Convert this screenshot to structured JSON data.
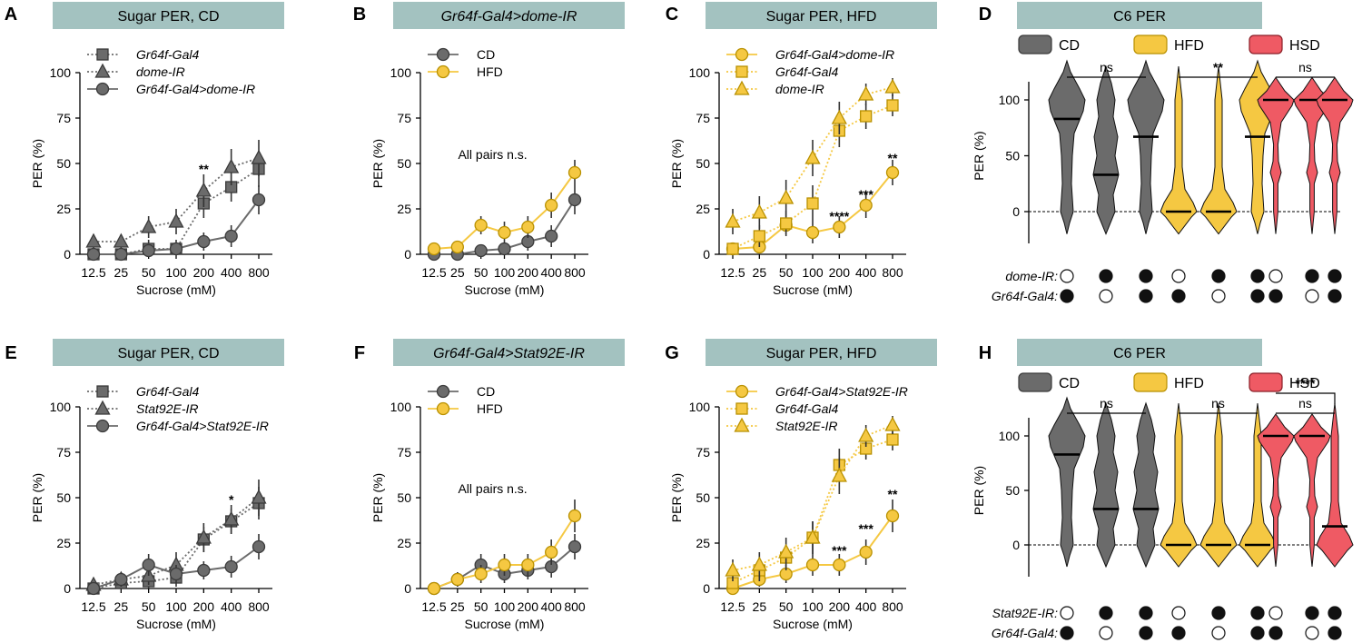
{
  "colors": {
    "banner": "#a3c2c0",
    "gray": "#6b6b6b",
    "gray_dark": "#3a3a3a",
    "yellow": "#f5c842",
    "yellow_dark": "#b89000",
    "red": "#ef5a64",
    "red_dark": "#8a1f27"
  },
  "chart_data": [
    {
      "panel": "A",
      "type": "line",
      "title": "Sugar PER, CD",
      "title_italic": false,
      "ylabel": "PER (%)",
      "xlabel": "Sucrose (mM)",
      "categories": [
        "12.5",
        "25",
        "50",
        "100",
        "200",
        "400",
        "800"
      ],
      "yticks": [
        "0",
        "25",
        "50",
        "75",
        "100"
      ],
      "ylim": [
        0,
        100
      ],
      "series": [
        {
          "name": "Gr64f-Gal4",
          "marker": "square",
          "style": "dotted",
          "color": "gray",
          "values": [
            0,
            0,
            3,
            3,
            28,
            37,
            47
          ],
          "err": [
            3,
            3,
            5,
            5,
            8,
            8,
            10
          ]
        },
        {
          "name": "dome-IR",
          "marker": "triangle",
          "style": "dotted",
          "color": "gray",
          "values": [
            7,
            7,
            15,
            18,
            35,
            48,
            53
          ],
          "err": [
            4,
            4,
            6,
            7,
            9,
            10,
            10
          ]
        },
        {
          "name": "Gr64f-Gal4>dome-IR",
          "marker": "circle",
          "style": "solid",
          "color": "gray",
          "values": [
            0,
            0,
            2,
            3,
            7,
            10,
            30
          ],
          "err": [
            2,
            2,
            3,
            3,
            5,
            6,
            8
          ]
        }
      ],
      "annotations": [
        {
          "cat": 4,
          "y": 47,
          "text": "**"
        }
      ]
    },
    {
      "panel": "B",
      "type": "line",
      "title": "Gr64f-Gal4>dome-IR",
      "title_italic": true,
      "ylabel": "PER (%)",
      "xlabel": "Sucrose (mM)",
      "categories": [
        "12.5",
        "25",
        "50",
        "100",
        "200",
        "400",
        "800"
      ],
      "yticks": [
        "0",
        "25",
        "50",
        "75",
        "100"
      ],
      "ylim": [
        0,
        100
      ],
      "series": [
        {
          "name": "CD",
          "marker": "circle",
          "style": "solid",
          "color": "gray",
          "values": [
            0,
            0,
            2,
            3,
            7,
            10,
            30
          ],
          "err": [
            2,
            2,
            3,
            3,
            5,
            6,
            8
          ]
        },
        {
          "name": "HFD",
          "marker": "circle",
          "style": "solid",
          "color": "yellow",
          "values": [
            3,
            4,
            16,
            12,
            15,
            27,
            45
          ],
          "err": [
            3,
            3,
            5,
            6,
            6,
            7,
            7
          ]
        }
      ],
      "annotations": [
        {
          "cat": 2.5,
          "y": 55,
          "text": "All pairs n.s."
        }
      ]
    },
    {
      "panel": "C",
      "type": "line",
      "title": "Sugar PER, HFD",
      "title_italic": false,
      "ylabel": "PER (%)",
      "xlabel": "Sucrose (mM)",
      "categories": [
        "12.5",
        "25",
        "50",
        "100",
        "200",
        "400",
        "800"
      ],
      "yticks": [
        "0",
        "25",
        "50",
        "75",
        "100"
      ],
      "ylim": [
        0,
        100
      ],
      "series": [
        {
          "name": "Gr64f-Gal4>dome-IR",
          "marker": "circle",
          "style": "solid",
          "color": "yellow",
          "values": [
            3,
            4,
            16,
            12,
            15,
            27,
            45
          ],
          "err": [
            3,
            3,
            5,
            6,
            6,
            7,
            7
          ]
        },
        {
          "name": "Gr64f-Gal4",
          "marker": "square",
          "style": "dotted",
          "color": "yellow",
          "values": [
            3,
            10,
            17,
            28,
            68,
            76,
            82
          ],
          "err": [
            3,
            6,
            7,
            10,
            9,
            7,
            6
          ]
        },
        {
          "name": "dome-IR",
          "marker": "triangle",
          "style": "dotted",
          "color": "yellow",
          "values": [
            18,
            23,
            31,
            53,
            75,
            88,
            92
          ],
          "err": [
            7,
            9,
            10,
            10,
            9,
            6,
            5
          ]
        }
      ],
      "annotations": [
        {
          "cat": 4,
          "y": 21,
          "text": "****"
        },
        {
          "cat": 5,
          "y": 33,
          "text": "***"
        },
        {
          "cat": 6,
          "y": 53,
          "text": "**"
        }
      ]
    },
    {
      "panel": "D",
      "type": "violin",
      "title": "C6 PER",
      "title_italic": false,
      "ylabel": "PER (%)",
      "yticks": [
        "0",
        "50",
        "100"
      ],
      "ylim": [
        0,
        100
      ],
      "legend": [
        {
          "name": "CD",
          "color": "gray"
        },
        {
          "name": "HFD",
          "color": "yellow"
        },
        {
          "name": "HSD",
          "color": "red"
        }
      ],
      "groups": [
        {
          "color": "gray",
          "medians": [
            83,
            33,
            67
          ],
          "sig": "ns"
        },
        {
          "color": "yellow",
          "medians": [
            0,
            0,
            67
          ],
          "sig": "**"
        },
        {
          "color": "red",
          "medians": [
            100,
            100,
            100
          ],
          "sig": "ns"
        }
      ],
      "genotype_rows": [
        {
          "label": "dome-IR:",
          "pattern": [
            0,
            1,
            1
          ]
        },
        {
          "label": "Gr64f-Gal4:",
          "pattern": [
            1,
            0,
            1
          ]
        }
      ]
    },
    {
      "panel": "E",
      "type": "line",
      "title": "Sugar PER, CD",
      "title_italic": false,
      "ylabel": "PER (%)",
      "xlabel": "Sucrose (mM)",
      "categories": [
        "12.5",
        "25",
        "50",
        "100",
        "200",
        "400",
        "800"
      ],
      "yticks": [
        "0",
        "25",
        "50",
        "75",
        "100"
      ],
      "ylim": [
        0,
        100
      ],
      "series": [
        {
          "name": "Gr64f-Gal4",
          "marker": "square",
          "style": "dotted",
          "color": "gray",
          "values": [
            0,
            3,
            4,
            6,
            27,
            37,
            47
          ],
          "err": [
            3,
            3,
            4,
            5,
            7,
            7,
            9
          ]
        },
        {
          "name": "Stat92E-IR",
          "marker": "triangle",
          "style": "dotted",
          "color": "gray",
          "values": [
            2,
            5,
            7,
            13,
            28,
            38,
            50
          ],
          "err": [
            3,
            4,
            5,
            7,
            8,
            8,
            10
          ]
        },
        {
          "name": "Gr64f-Gal4>Stat92E-IR",
          "marker": "circle",
          "style": "solid",
          "color": "gray",
          "values": [
            0,
            5,
            13,
            8,
            10,
            12,
            23
          ],
          "err": [
            2,
            4,
            6,
            5,
            5,
            6,
            7
          ]
        }
      ],
      "annotations": [
        {
          "cat": 5,
          "y": 49,
          "text": "*"
        }
      ]
    },
    {
      "panel": "F",
      "type": "line",
      "title": "Gr64f-Gal4>Stat92E-IR",
      "title_italic": true,
      "ylabel": "PER (%)",
      "xlabel": "Sucrose (mM)",
      "categories": [
        "12.5",
        "25",
        "50",
        "100",
        "200",
        "400",
        "800"
      ],
      "yticks": [
        "0",
        "25",
        "50",
        "75",
        "100"
      ],
      "ylim": [
        0,
        100
      ],
      "series": [
        {
          "name": "CD",
          "marker": "circle",
          "style": "solid",
          "color": "gray",
          "values": [
            0,
            5,
            13,
            8,
            10,
            12,
            23
          ],
          "err": [
            2,
            4,
            6,
            5,
            5,
            6,
            7
          ]
        },
        {
          "name": "HFD",
          "marker": "circle",
          "style": "solid",
          "color": "yellow",
          "values": [
            0,
            5,
            8,
            13,
            13,
            20,
            40
          ],
          "err": [
            2,
            4,
            5,
            6,
            6,
            7,
            9
          ]
        }
      ],
      "annotations": [
        {
          "cat": 2.5,
          "y": 55,
          "text": "All pairs n.s."
        }
      ]
    },
    {
      "panel": "G",
      "type": "line",
      "title": "Sugar PER, HFD",
      "title_italic": false,
      "ylabel": "PER (%)",
      "xlabel": "Sucrose (mM)",
      "categories": [
        "12.5",
        "25",
        "50",
        "100",
        "200",
        "400",
        "800"
      ],
      "yticks": [
        "0",
        "25",
        "50",
        "75",
        "100"
      ],
      "ylim": [
        0,
        100
      ],
      "series": [
        {
          "name": "Gr64f-Gal4>Stat92E-IR",
          "marker": "circle",
          "style": "solid",
          "color": "yellow",
          "values": [
            0,
            5,
            8,
            13,
            13,
            20,
            40
          ],
          "err": [
            2,
            4,
            5,
            6,
            6,
            7,
            9
          ]
        },
        {
          "name": "Gr64f-Gal4",
          "marker": "square",
          "style": "dotted",
          "color": "yellow",
          "values": [
            3,
            10,
            17,
            28,
            68,
            77,
            82
          ],
          "err": [
            4,
            6,
            7,
            9,
            9,
            6,
            6
          ]
        },
        {
          "name": "Stat92E-IR",
          "marker": "triangle",
          "style": "dotted",
          "color": "yellow",
          "values": [
            10,
            13,
            20,
            28,
            62,
            84,
            90
          ],
          "err": [
            6,
            7,
            8,
            9,
            10,
            6,
            5
          ]
        }
      ],
      "annotations": [
        {
          "cat": 4,
          "y": 21,
          "text": "***"
        },
        {
          "cat": 5,
          "y": 33,
          "text": "***"
        },
        {
          "cat": 6,
          "y": 52,
          "text": "**"
        }
      ]
    },
    {
      "panel": "H",
      "type": "violin",
      "title": "C6 PER",
      "title_italic": false,
      "ylabel": "PER (%)",
      "yticks": [
        "0",
        "50",
        "100"
      ],
      "ylim": [
        0,
        100
      ],
      "legend": [
        {
          "name": "CD",
          "color": "gray"
        },
        {
          "name": "HFD",
          "color": "yellow"
        },
        {
          "name": "HSD",
          "color": "red"
        }
      ],
      "groups": [
        {
          "color": "gray",
          "medians": [
            83,
            33,
            33
          ],
          "sig": "ns"
        },
        {
          "color": "yellow",
          "medians": [
            0,
            0,
            0
          ],
          "sig": "ns"
        },
        {
          "color": "red",
          "medians": [
            100,
            100,
            17
          ],
          "sig": "ns",
          "extra_sig": "****"
        }
      ],
      "genotype_rows": [
        {
          "label": "Stat92E-IR:",
          "pattern": [
            0,
            1,
            1
          ]
        },
        {
          "label": "Gr64f-Gal4:",
          "pattern": [
            1,
            0,
            1
          ]
        }
      ]
    }
  ]
}
